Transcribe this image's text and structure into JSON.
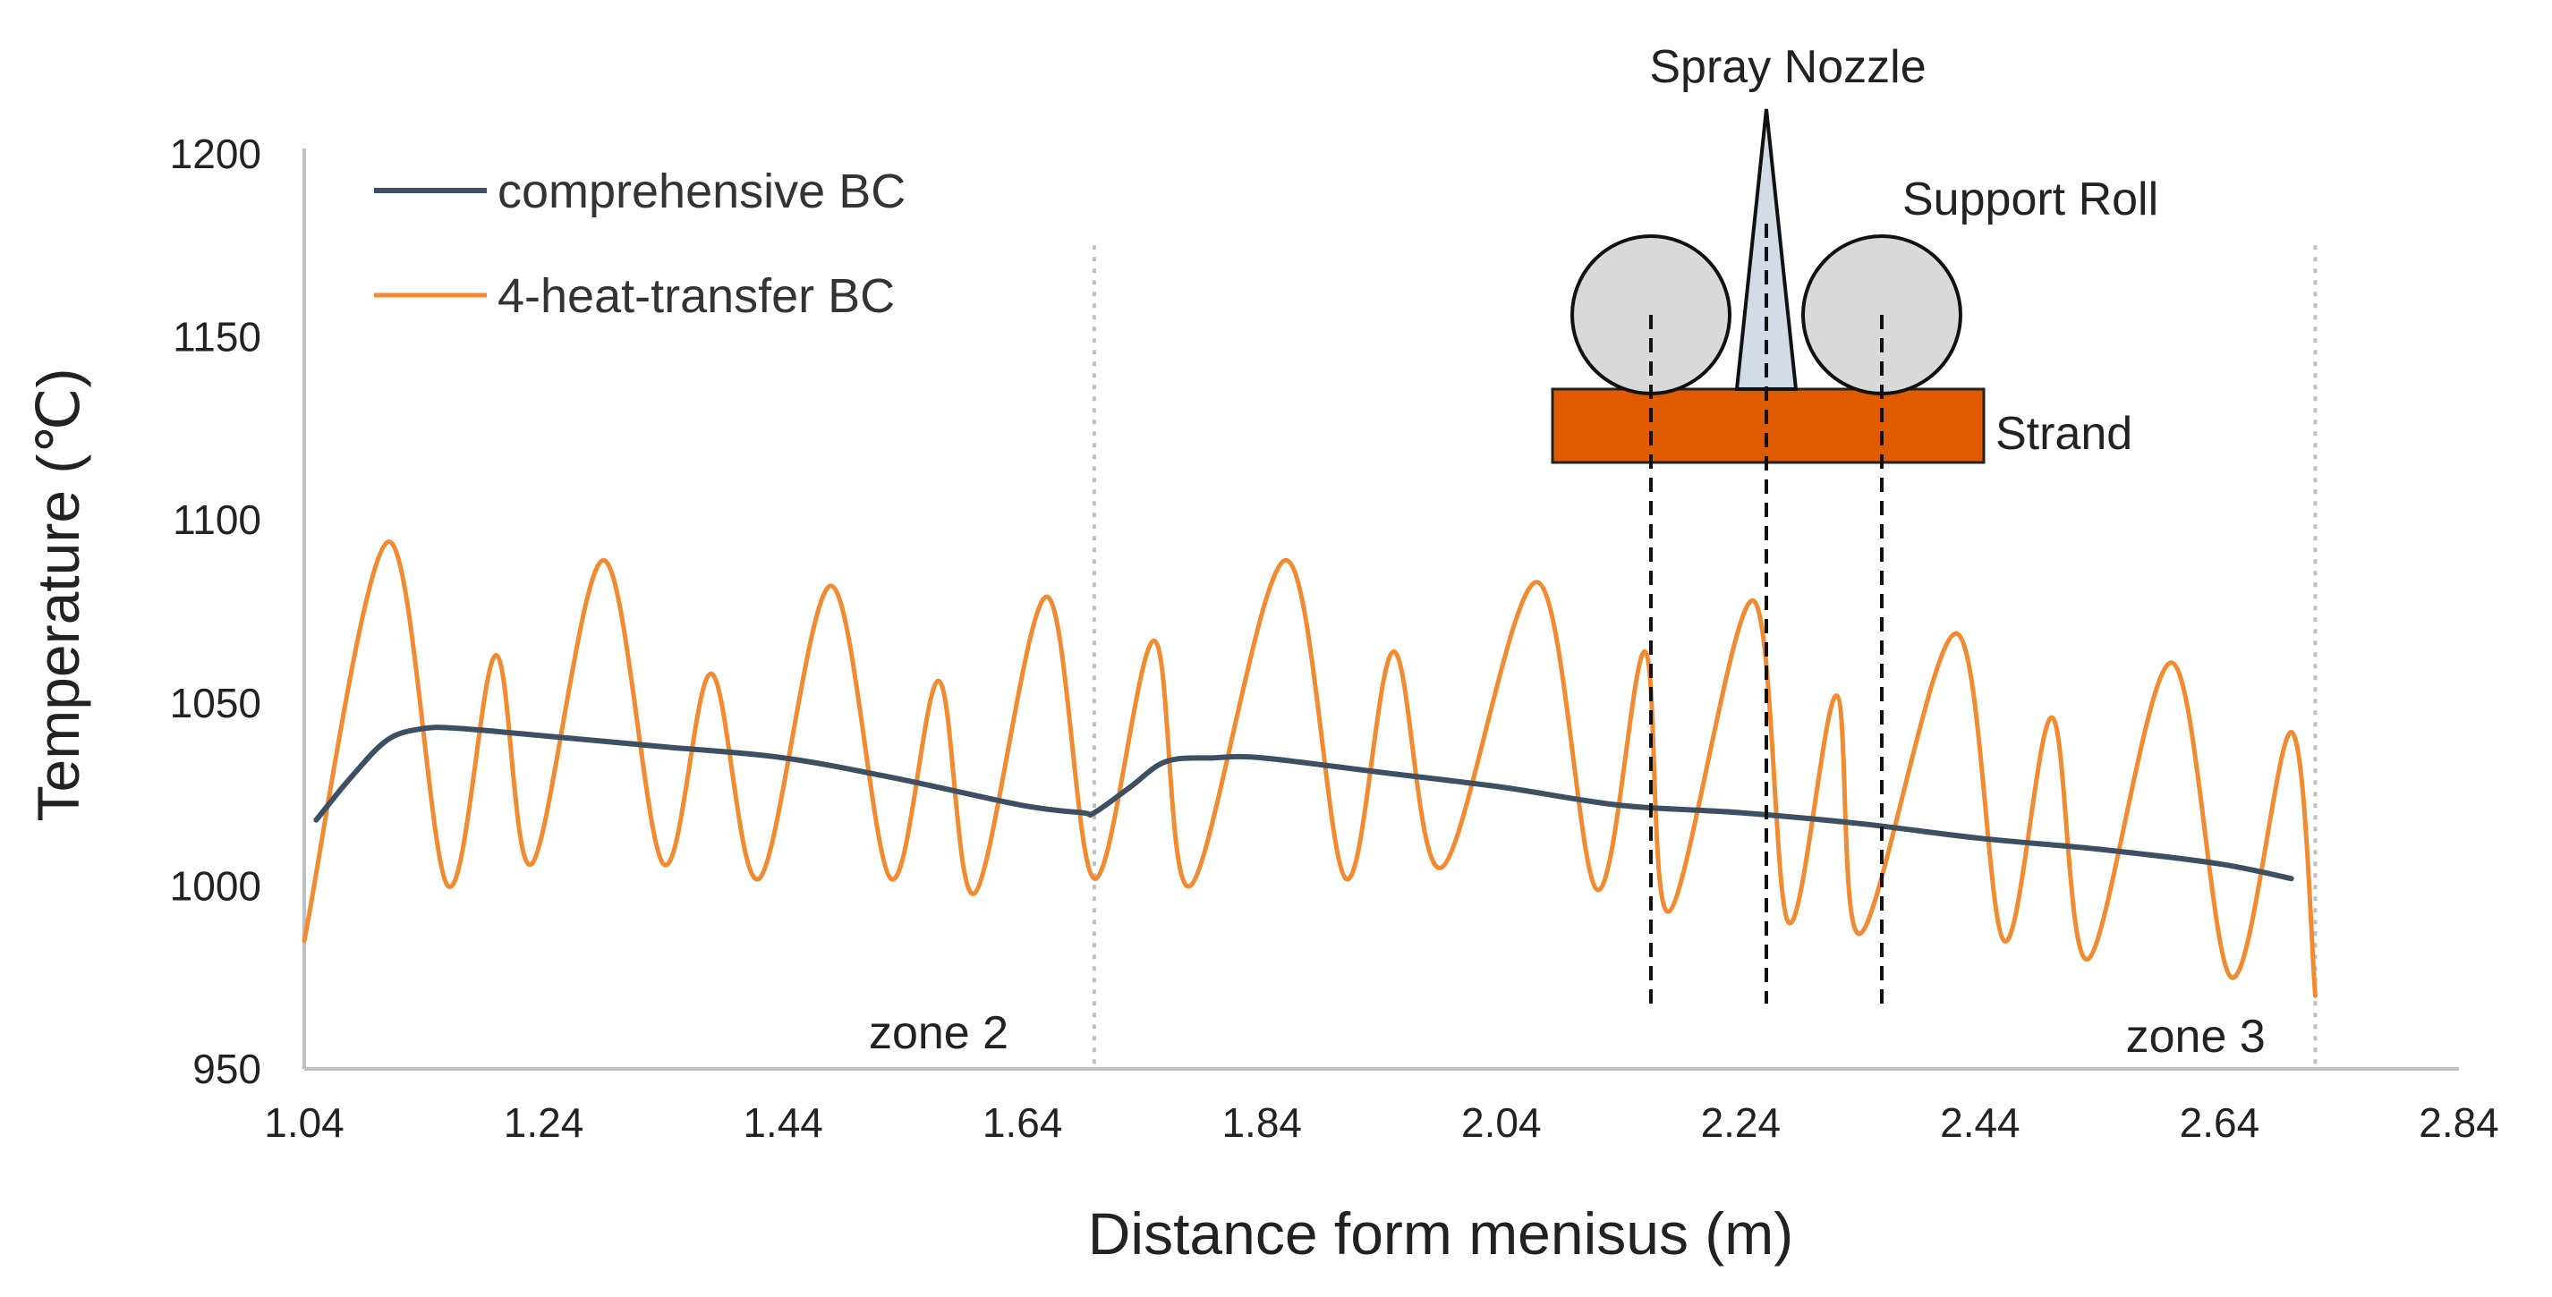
{
  "colors": {
    "series_comprehensive": "#3d4f63",
    "series_4ht": "#f28a30",
    "strand": "#e05a00",
    "roll_fill": "#d9d9d9",
    "nozzle_fill": "#d3dce6",
    "axis": "#bfbfbf",
    "zone_line": "#bfbfbf"
  },
  "chart_data": {
    "type": "line",
    "title": "",
    "xlabel": "Distance form menisus (m)",
    "ylabel": "Temperature (℃)",
    "xlim": [
      1.04,
      2.84
    ],
    "ylim": [
      950,
      1200
    ],
    "xticks": [
      "1.04",
      "1.24",
      "1.44",
      "1.64",
      "1.84",
      "2.04",
      "2.24",
      "2.44",
      "2.64",
      "2.84"
    ],
    "yticks": [
      "950",
      "1000",
      "1050",
      "1100",
      "1150",
      "1200"
    ],
    "legend_position": "top-left",
    "series": [
      {
        "name": "comprehensive BC",
        "color": "#3d4f63",
        "points": [
          [
            1.05,
            1018
          ],
          [
            1.08,
            1030
          ],
          [
            1.11,
            1040
          ],
          [
            1.14,
            1043
          ],
          [
            1.17,
            1043
          ],
          [
            1.24,
            1041
          ],
          [
            1.34,
            1038
          ],
          [
            1.44,
            1035
          ],
          [
            1.54,
            1029
          ],
          [
            1.64,
            1022
          ],
          [
            1.69,
            1020
          ],
          [
            1.7,
            1020
          ],
          [
            1.73,
            1027
          ],
          [
            1.76,
            1034
          ],
          [
            1.8,
            1035
          ],
          [
            1.84,
            1035
          ],
          [
            1.94,
            1031
          ],
          [
            2.04,
            1027
          ],
          [
            2.14,
            1022
          ],
          [
            2.24,
            1020
          ],
          [
            2.34,
            1017
          ],
          [
            2.44,
            1013
          ],
          [
            2.54,
            1010
          ],
          [
            2.64,
            1006
          ],
          [
            2.7,
            1002
          ]
        ]
      },
      {
        "name": "4-heat-transfer BC",
        "color": "#f28a30",
        "points": [
          [
            1.04,
            985
          ],
          [
            1.11,
            1094
          ],
          [
            1.16,
            1000
          ],
          [
            1.2,
            1063
          ],
          [
            1.23,
            1006
          ],
          [
            1.29,
            1089
          ],
          [
            1.34,
            1006
          ],
          [
            1.38,
            1058
          ],
          [
            1.42,
            1002
          ],
          [
            1.48,
            1082
          ],
          [
            1.53,
            1002
          ],
          [
            1.57,
            1056
          ],
          [
            1.6,
            998
          ],
          [
            1.66,
            1079
          ],
          [
            1.7,
            1002
          ],
          [
            1.75,
            1067
          ],
          [
            1.78,
            1000
          ],
          [
            1.86,
            1089
          ],
          [
            1.91,
            1002
          ],
          [
            1.95,
            1064
          ],
          [
            1.99,
            1005
          ],
          [
            2.07,
            1083
          ],
          [
            2.12,
            999
          ],
          [
            2.16,
            1064
          ],
          [
            2.18,
            993
          ],
          [
            2.25,
            1078
          ],
          [
            2.28,
            990
          ],
          [
            2.32,
            1052
          ],
          [
            2.34,
            987
          ],
          [
            2.42,
            1069
          ],
          [
            2.46,
            985
          ],
          [
            2.5,
            1046
          ],
          [
            2.53,
            980
          ],
          [
            2.6,
            1061
          ],
          [
            2.65,
            975
          ],
          [
            2.7,
            1042
          ],
          [
            2.72,
            970
          ]
        ]
      }
    ],
    "zone_boundaries": [
      1.7,
      2.72
    ],
    "zone_labels": [
      {
        "text": "zone 2",
        "x": 1.57,
        "y": 960
      },
      {
        "text": "zone 3",
        "x": 2.62,
        "y": 959
      }
    ]
  },
  "inset": {
    "spray_nozzle_label": "Spray Nozzle",
    "support_roll_label": "Support Roll",
    "strand_label": "Strand"
  }
}
